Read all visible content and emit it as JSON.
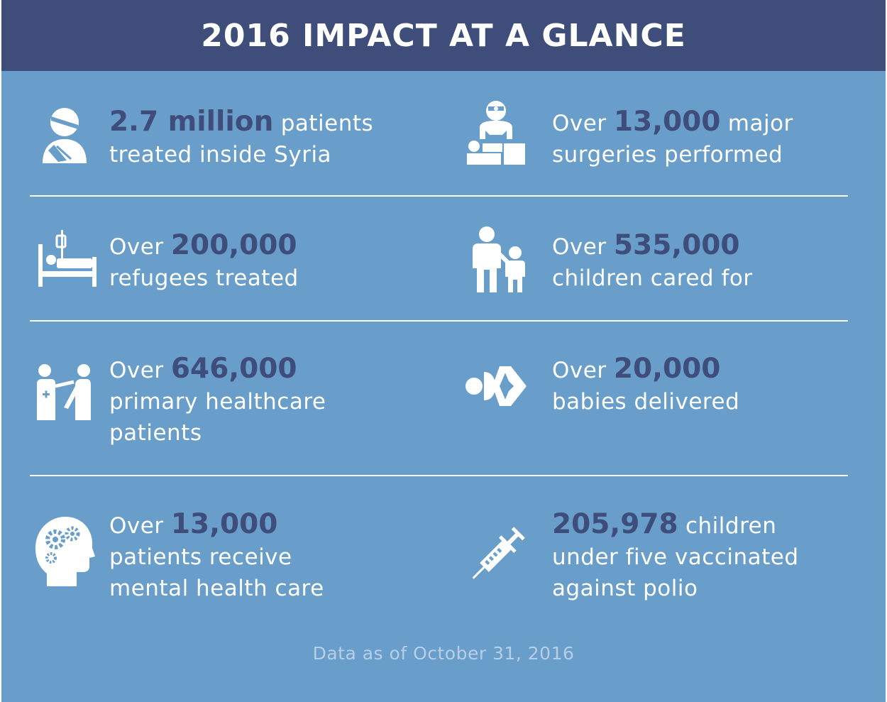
{
  "header": {
    "title": "2016 IMPACT AT A GLANCE"
  },
  "stats": [
    {
      "icon": "injured-patient-icon",
      "pre": "",
      "num": "2.7 million",
      "post": " patients",
      "line2": "treated inside Syria",
      "line3": ""
    },
    {
      "icon": "surgeon-icon",
      "pre": "Over ",
      "num": "13,000",
      "post": " major",
      "line2": "surgeries performed",
      "line3": ""
    },
    {
      "icon": "hospital-bed-icon",
      "pre": "Over ",
      "num": "200,000",
      "post": "",
      "line2": "refugees treated",
      "line3": ""
    },
    {
      "icon": "parent-child-icon",
      "pre": "Over ",
      "num": "535,000",
      "post": "",
      "line2": "children cared for",
      "line3": ""
    },
    {
      "icon": "doctor-patient-icon",
      "pre": "Over ",
      "num": "646,000",
      "post": "",
      "line2": "primary healthcare",
      "line3": "patients"
    },
    {
      "icon": "baby-delivery-icon",
      "pre": "Over ",
      "num": "20,000",
      "post": "",
      "line2": "babies delivered",
      "line3": ""
    },
    {
      "icon": "mental-health-head-icon",
      "pre": "Over ",
      "num": "13,000",
      "post": "",
      "line2": "patients receive",
      "line3": "mental health care"
    },
    {
      "icon": "syringe-icon",
      "pre": "",
      "num": "205,978",
      "post": " children",
      "line2": "under five vaccinated",
      "line3": "against polio"
    }
  ],
  "footer": {
    "note": "Data as of October 31, 2016"
  },
  "colors": {
    "background": "#699dca",
    "header": "#3e4d7a",
    "highlight": "#3e4d7a",
    "text": "#ffffff"
  }
}
